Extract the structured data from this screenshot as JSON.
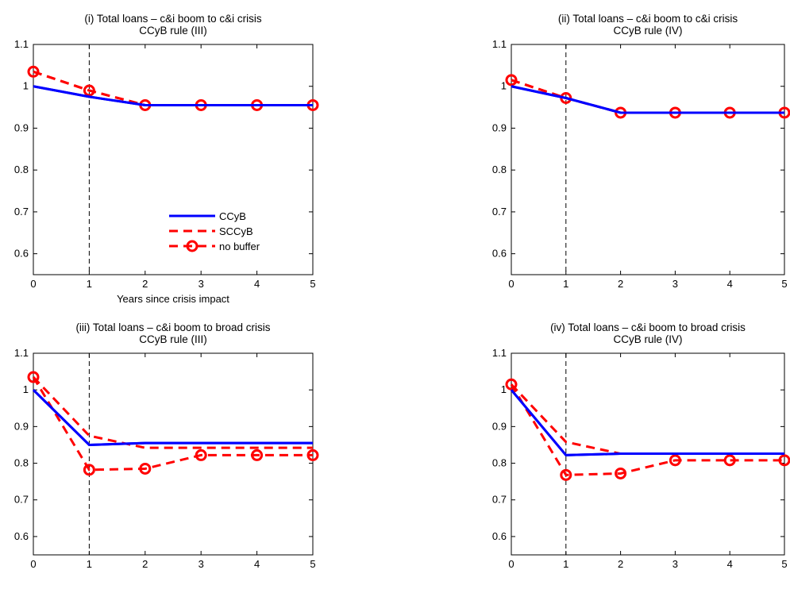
{
  "chart_data": [
    {
      "type": "line",
      "title": "(i) Total loans –  c&i boom to c&i crisis",
      "subtitle": "CCyB rule (III)",
      "xlabel": "Years since crisis impact",
      "ylabel": "",
      "x": [
        0,
        1,
        2,
        3,
        4,
        5
      ],
      "xlim": [
        0,
        5
      ],
      "ylim": [
        0.55,
        1.1
      ],
      "xticks": [
        "0",
        "1",
        "2",
        "3",
        "4",
        "5"
      ],
      "yticks": [
        "0.6",
        "0.7",
        "0.8",
        "0.9",
        "1",
        "1.1"
      ],
      "vline_x": 1,
      "legend_position": "bottom-right",
      "series": [
        {
          "name": "CCyB",
          "values": [
            1.0,
            0.975,
            0.955,
            0.955,
            0.955,
            0.955
          ],
          "color": "#0000ff",
          "style": "solid"
        },
        {
          "name": "SCCyB",
          "values": [
            1.035,
            0.99,
            0.955,
            0.955,
            0.955,
            0.955
          ],
          "color": "#ff0000",
          "style": "dashed"
        },
        {
          "name": "no buffer",
          "values": [
            1.035,
            0.99,
            0.955,
            0.955,
            0.955,
            0.955
          ],
          "color": "#ff0000",
          "style": "dashed-circle"
        }
      ]
    },
    {
      "type": "line",
      "title": "(ii) Total loans –  c&i boom to c&i crisis",
      "subtitle": "CCyB rule (IV)",
      "xlabel": "",
      "ylabel": "",
      "x": [
        0,
        1,
        2,
        3,
        4,
        5
      ],
      "xlim": [
        0,
        5
      ],
      "ylim": [
        0.55,
        1.1
      ],
      "xticks": [
        "0",
        "1",
        "2",
        "3",
        "4",
        "5"
      ],
      "yticks": [
        "0.6",
        "0.7",
        "0.8",
        "0.9",
        "1",
        "1.1"
      ],
      "vline_x": 1,
      "series": [
        {
          "name": "CCyB",
          "values": [
            1.0,
            0.972,
            0.937,
            0.937,
            0.937,
            0.937
          ],
          "color": "#0000ff",
          "style": "solid"
        },
        {
          "name": "SCCyB",
          "values": [
            1.015,
            0.972,
            0.937,
            0.937,
            0.937,
            0.937
          ],
          "color": "#ff0000",
          "style": "dashed"
        },
        {
          "name": "no buffer",
          "values": [
            1.015,
            0.972,
            0.937,
            0.937,
            0.937,
            0.937
          ],
          "color": "#ff0000",
          "style": "dashed-circle"
        }
      ]
    },
    {
      "type": "line",
      "title": "(iii) Total loans –  c&i boom to broad crisis",
      "subtitle": "CCyB rule (III)",
      "xlabel": "",
      "ylabel": "",
      "x": [
        0,
        1,
        2,
        3,
        4,
        5
      ],
      "xlim": [
        0,
        5
      ],
      "ylim": [
        0.55,
        1.1
      ],
      "xticks": [
        "0",
        "1",
        "2",
        "3",
        "4",
        "5"
      ],
      "yticks": [
        "0.6",
        "0.7",
        "0.8",
        "0.9",
        "1",
        "1.1"
      ],
      "vline_x": 1,
      "series": [
        {
          "name": "CCyB",
          "values": [
            1.0,
            0.85,
            0.855,
            0.855,
            0.855,
            0.855
          ],
          "color": "#0000ff",
          "style": "solid"
        },
        {
          "name": "SCCyB",
          "values": [
            1.035,
            0.875,
            0.842,
            0.842,
            0.842,
            0.842
          ],
          "color": "#ff0000",
          "style": "dashed"
        },
        {
          "name": "no buffer",
          "values": [
            1.035,
            0.782,
            0.785,
            0.822,
            0.822,
            0.822
          ],
          "color": "#ff0000",
          "style": "dashed-circle"
        }
      ]
    },
    {
      "type": "line",
      "title": "(iv) Total loans –  c&i boom to broad crisis",
      "subtitle": "CCyB rule (IV)",
      "xlabel": "",
      "ylabel": "",
      "x": [
        0,
        1,
        2,
        3,
        4,
        5
      ],
      "xlim": [
        0,
        5
      ],
      "ylim": [
        0.55,
        1.1
      ],
      "xticks": [
        "0",
        "1",
        "2",
        "3",
        "4",
        "5"
      ],
      "yticks": [
        "0.6",
        "0.7",
        "0.8",
        "0.9",
        "1",
        "1.1"
      ],
      "vline_x": 1,
      "series": [
        {
          "name": "CCyB",
          "values": [
            1.0,
            0.822,
            0.826,
            0.826,
            0.826,
            0.826
          ],
          "color": "#0000ff",
          "style": "solid"
        },
        {
          "name": "SCCyB",
          "values": [
            1.015,
            0.858,
            0.826,
            0.826,
            0.826,
            0.826
          ],
          "color": "#ff0000",
          "style": "dashed"
        },
        {
          "name": "no buffer",
          "values": [
            1.015,
            0.768,
            0.772,
            0.808,
            0.808,
            0.808
          ],
          "color": "#ff0000",
          "style": "dashed-circle"
        }
      ]
    }
  ],
  "legend": {
    "entries": [
      "CCyB",
      "SCCyB",
      "no buffer"
    ]
  }
}
